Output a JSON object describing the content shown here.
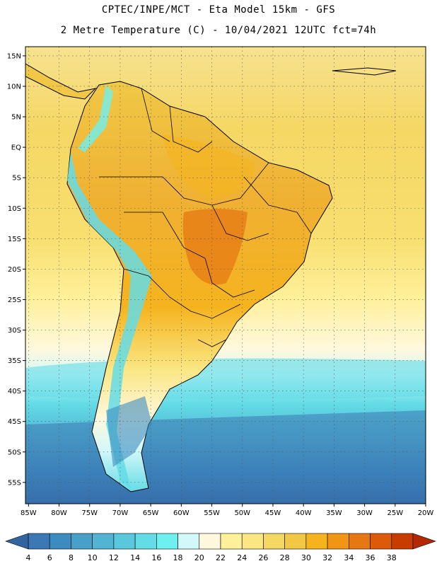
{
  "header": {
    "line1": "CPTEC/INPE/MCT -  Eta Model 15km - GFS",
    "line2": "2 Metre Temperature (C) - 10/04/2021 12UTC fct=74h"
  },
  "map": {
    "lat_labels": [
      "15N",
      "10N",
      "5N",
      "EQ",
      "5S",
      "10S",
      "15S",
      "20S",
      "25S",
      "30S",
      "35S",
      "40S",
      "45S",
      "50S",
      "55S"
    ],
    "lon_labels": [
      "85W",
      "80W",
      "75W",
      "70W",
      "65W",
      "60W",
      "55W",
      "50W",
      "45W",
      "40W",
      "35W",
      "30W",
      "25W",
      "20W"
    ],
    "lat_values": [
      15,
      10,
      5,
      0,
      -5,
      -10,
      -15,
      -20,
      -25,
      -30,
      -35,
      -40,
      -45,
      -50,
      -55
    ],
    "lon_values": [
      -85,
      -80,
      -75,
      -70,
      -65,
      -60,
      -55,
      -50,
      -45,
      -40,
      -35,
      -30,
      -25,
      -20
    ],
    "lat_range": [
      -58.5,
      16.5
    ],
    "lon_range": [
      -85.5,
      -20
    ]
  },
  "colorbar": {
    "labels": [
      "4",
      "6",
      "8",
      "10",
      "12",
      "14",
      "16",
      "18",
      "20",
      "22",
      "24",
      "26",
      "28",
      "30",
      "32",
      "34",
      "36",
      "38"
    ],
    "colors": [
      "#3c78b4",
      "#3c8cc0",
      "#46a0c8",
      "#50b4d2",
      "#5ac8dc",
      "#64dce6",
      "#6ef0f0",
      "#d2f8fa",
      "#fff8dc",
      "#fff09a",
      "#fae682",
      "#f5d764",
      "#f0c846",
      "#f5b41e",
      "#f09614",
      "#e67814",
      "#dc5a0a",
      "#c83c00"
    ],
    "low_end_color": "#3264a0",
    "high_end_color": "#b42800"
  },
  "colors": {
    "ocean_south": "#3c78b4",
    "ocean_mid": "#50b4d2",
    "ocean_north": "#f5d764",
    "land_warm": "#f0c846",
    "land_hot": "#f09614",
    "andes": "#64dce6",
    "coast": "#000000"
  }
}
